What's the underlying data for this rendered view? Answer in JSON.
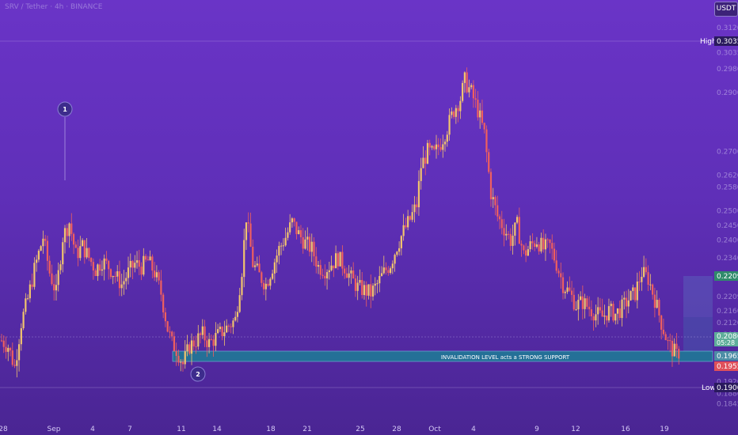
{
  "header": {
    "legend": "SRV / Tether · 4h · BINANCE"
  },
  "toolbar": {
    "currency": "USDT"
  },
  "chart_data": {
    "type": "candlestick",
    "title": "",
    "y_range": [
      0.182,
      0.316
    ],
    "y_ticks": [
      "0.3120",
      "0.3035",
      "0.2980",
      "0.2900",
      "0.2700",
      "0.2620",
      "0.2580",
      "0.2500",
      "0.2450",
      "0.2400",
      "0.2340",
      "0.2280",
      "0.2209",
      "0.2160",
      "0.2120",
      "0.2080",
      "0.2000",
      "0.1920",
      "0.1900",
      "0.1880",
      "0.1845"
    ],
    "x_ticks": [
      "28",
      "Sep",
      "4",
      "7",
      "11",
      "14",
      "18",
      "21",
      "25",
      "28",
      "Oct",
      "4",
      "9",
      "12",
      "16",
      "19"
    ],
    "annotations": {
      "high_label": "High",
      "high_value": "0.3035",
      "low_label": "Low",
      "low_value": "0.1900",
      "marker_1": "1",
      "marker_2": "2",
      "zone_label": "INVALIDATION LEVEL acts a STRONG SUPPORT",
      "target_value": "0.2209",
      "current_price": "0.2086",
      "countdown": "05:28",
      "support_value": "0.1965",
      "stop_value": "0.1955"
    },
    "colors": {
      "up": "#f2c46d",
      "down": "#ef5f5f",
      "zone": "#1d7d96"
    },
    "price_path": [
      [
        0,
        0.206
      ],
      [
        3,
        0.204
      ],
      [
        6,
        0.197
      ],
      [
        9,
        0.212
      ],
      [
        12,
        0.22
      ],
      [
        15,
        0.23
      ],
      [
        19,
        0.241
      ],
      [
        22,
        0.229
      ],
      [
        25,
        0.222
      ],
      [
        28,
        0.241
      ],
      [
        31,
        0.246
      ],
      [
        34,
        0.235
      ],
      [
        37,
        0.238
      ],
      [
        40,
        0.234
      ],
      [
        43,
        0.23
      ],
      [
        46,
        0.233
      ],
      [
        49,
        0.231
      ],
      [
        52,
        0.228
      ],
      [
        55,
        0.225
      ],
      [
        58,
        0.229
      ],
      [
        61,
        0.232
      ],
      [
        64,
        0.231
      ],
      [
        67,
        0.233
      ],
      [
        70,
        0.229
      ],
      [
        73,
        0.222
      ],
      [
        76,
        0.21
      ],
      [
        78,
        0.205
      ],
      [
        80,
        0.203
      ],
      [
        83,
        0.198
      ],
      [
        86,
        0.204
      ],
      [
        89,
        0.206
      ],
      [
        92,
        0.208
      ],
      [
        95,
        0.205
      ],
      [
        98,
        0.207
      ],
      [
        101,
        0.209
      ],
      [
        104,
        0.211
      ],
      [
        107,
        0.213
      ],
      [
        110,
        0.23
      ],
      [
        112,
        0.248
      ],
      [
        115,
        0.232
      ],
      [
        118,
        0.228
      ],
      [
        121,
        0.225
      ],
      [
        124,
        0.231
      ],
      [
        127,
        0.237
      ],
      [
        130,
        0.241
      ],
      [
        133,
        0.246
      ],
      [
        136,
        0.242
      ],
      [
        139,
        0.239
      ],
      [
        142,
        0.237
      ],
      [
        145,
        0.231
      ],
      [
        148,
        0.23
      ],
      [
        151,
        0.232
      ],
      [
        154,
        0.234
      ],
      [
        157,
        0.231
      ],
      [
        160,
        0.227
      ],
      [
        163,
        0.224
      ],
      [
        166,
        0.223
      ],
      [
        169,
        0.222
      ],
      [
        172,
        0.225
      ],
      [
        175,
        0.229
      ],
      [
        178,
        0.232
      ],
      [
        181,
        0.238
      ],
      [
        184,
        0.243
      ],
      [
        187,
        0.247
      ],
      [
        190,
        0.252
      ],
      [
        192,
        0.265
      ],
      [
        195,
        0.27
      ],
      [
        198,
        0.269
      ],
      [
        201,
        0.273
      ],
      [
        204,
        0.278
      ],
      [
        207,
        0.284
      ],
      [
        210,
        0.288
      ],
      [
        212,
        0.294
      ],
      [
        215,
        0.29
      ],
      [
        218,
        0.284
      ],
      [
        221,
        0.276
      ],
      [
        224,
        0.256
      ],
      [
        227,
        0.248
      ],
      [
        230,
        0.244
      ],
      [
        233,
        0.24
      ],
      [
        236,
        0.245
      ],
      [
        239,
        0.235
      ],
      [
        242,
        0.238
      ],
      [
        245,
        0.24
      ],
      [
        248,
        0.237
      ],
      [
        251,
        0.238
      ],
      [
        254,
        0.232
      ],
      [
        257,
        0.225
      ],
      [
        260,
        0.222
      ],
      [
        263,
        0.218
      ],
      [
        266,
        0.219
      ],
      [
        269,
        0.217
      ],
      [
        272,
        0.215
      ],
      [
        275,
        0.214
      ],
      [
        278,
        0.216
      ],
      [
        281,
        0.215
      ],
      [
        284,
        0.217
      ],
      [
        287,
        0.22
      ],
      [
        290,
        0.222
      ],
      [
        293,
        0.229
      ],
      [
        296,
        0.227
      ],
      [
        299,
        0.22
      ],
      [
        302,
        0.212
      ],
      [
        305,
        0.205
      ],
      [
        307,
        0.203
      ],
      [
        309,
        0.201
      ],
      [
        311,
        0.203
      ]
    ]
  }
}
